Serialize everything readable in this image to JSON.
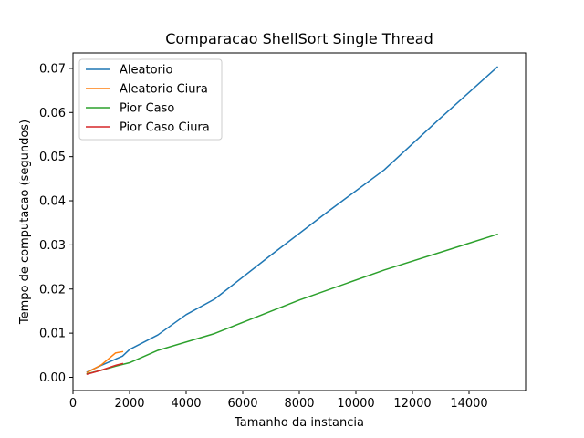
{
  "chart_data": {
    "type": "line",
    "title": "Comparacao ShellSort Single Thread",
    "xlabel": "Tamanho da instancia",
    "ylabel": "Tempo de computacao (segundos)",
    "xlim": [
      0,
      16000
    ],
    "ylim": [
      -0.003,
      0.0735
    ],
    "xticks": [
      0,
      2000,
      4000,
      6000,
      8000,
      10000,
      12000,
      14000
    ],
    "xtick_labels": [
      "0",
      "2000",
      "4000",
      "6000",
      "8000",
      "10000",
      "12000",
      "14000"
    ],
    "yticks": [
      0.0,
      0.01,
      0.02,
      0.03,
      0.04,
      0.05,
      0.06,
      0.07
    ],
    "ytick_labels": [
      "0.00",
      "0.01",
      "0.02",
      "0.03",
      "0.04",
      "0.05",
      "0.06",
      "0.07"
    ],
    "grid": false,
    "legend_position": "top-left",
    "series": [
      {
        "name": "Aleatorio",
        "color": "#1f77b4",
        "x": [
          500,
          1000,
          1500,
          1750,
          2000,
          3000,
          4000,
          5000,
          7000,
          9000,
          11000,
          13000,
          15000
        ],
        "y": [
          0.0012,
          0.0027,
          0.0041,
          0.0048,
          0.0063,
          0.0096,
          0.0142,
          0.0177,
          0.0277,
          0.0375,
          0.047,
          0.0588,
          0.0703
        ]
      },
      {
        "name": "Aleatorio Ciura",
        "color": "#ff7f0e",
        "x": [
          500,
          1000,
          1500,
          1750
        ],
        "y": [
          0.0011,
          0.0028,
          0.0055,
          0.0058
        ]
      },
      {
        "name": "Pior Caso",
        "color": "#2ca02c",
        "x": [
          500,
          1000,
          1500,
          2000,
          3000,
          5000,
          8000,
          11000,
          15000
        ],
        "y": [
          0.0008,
          0.0016,
          0.0025,
          0.0033,
          0.0061,
          0.0099,
          0.0175,
          0.0243,
          0.0324
        ]
      },
      {
        "name": "Pior Caso Ciura",
        "color": "#d62728",
        "x": [
          500,
          1000,
          1500,
          1750
        ],
        "y": [
          0.0007,
          0.0016,
          0.0027,
          0.0031
        ]
      }
    ]
  }
}
